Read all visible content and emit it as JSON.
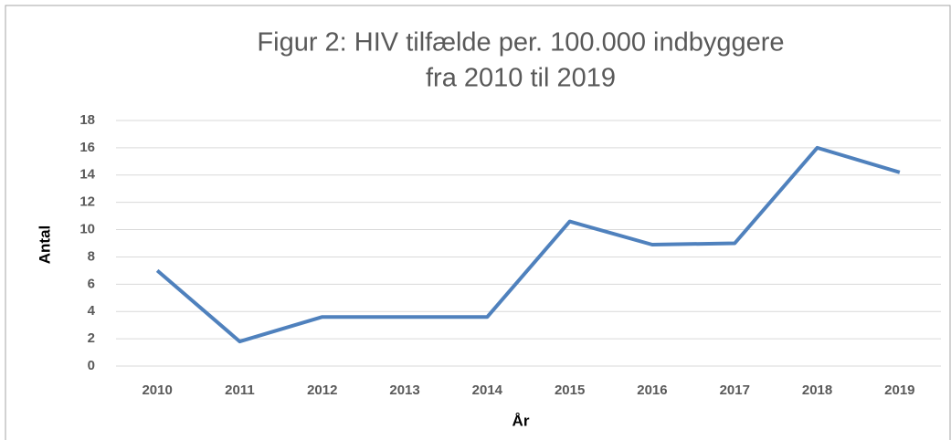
{
  "chart_data": {
    "type": "line",
    "title": [
      "Figur 2: HIV tilfælde per. 100.000 indbyggere",
      "fra 2010 til 2019"
    ],
    "x_label": "År",
    "y_label": "Antal",
    "categories": [
      "2010",
      "2011",
      "2012",
      "2013",
      "2014",
      "2015",
      "2016",
      "2017",
      "2018",
      "2019"
    ],
    "series": [
      {
        "name": "HIV tilfælde",
        "color": "#4f81bd",
        "values": [
          7,
          1.8,
          3.6,
          3.6,
          3.6,
          10.6,
          8.9,
          9.0,
          16,
          14.2
        ]
      }
    ],
    "ylim": [
      0,
      18
    ],
    "yticks": [
      0,
      2,
      4,
      6,
      8,
      10,
      12,
      14,
      16,
      18
    ],
    "grid": true
  }
}
